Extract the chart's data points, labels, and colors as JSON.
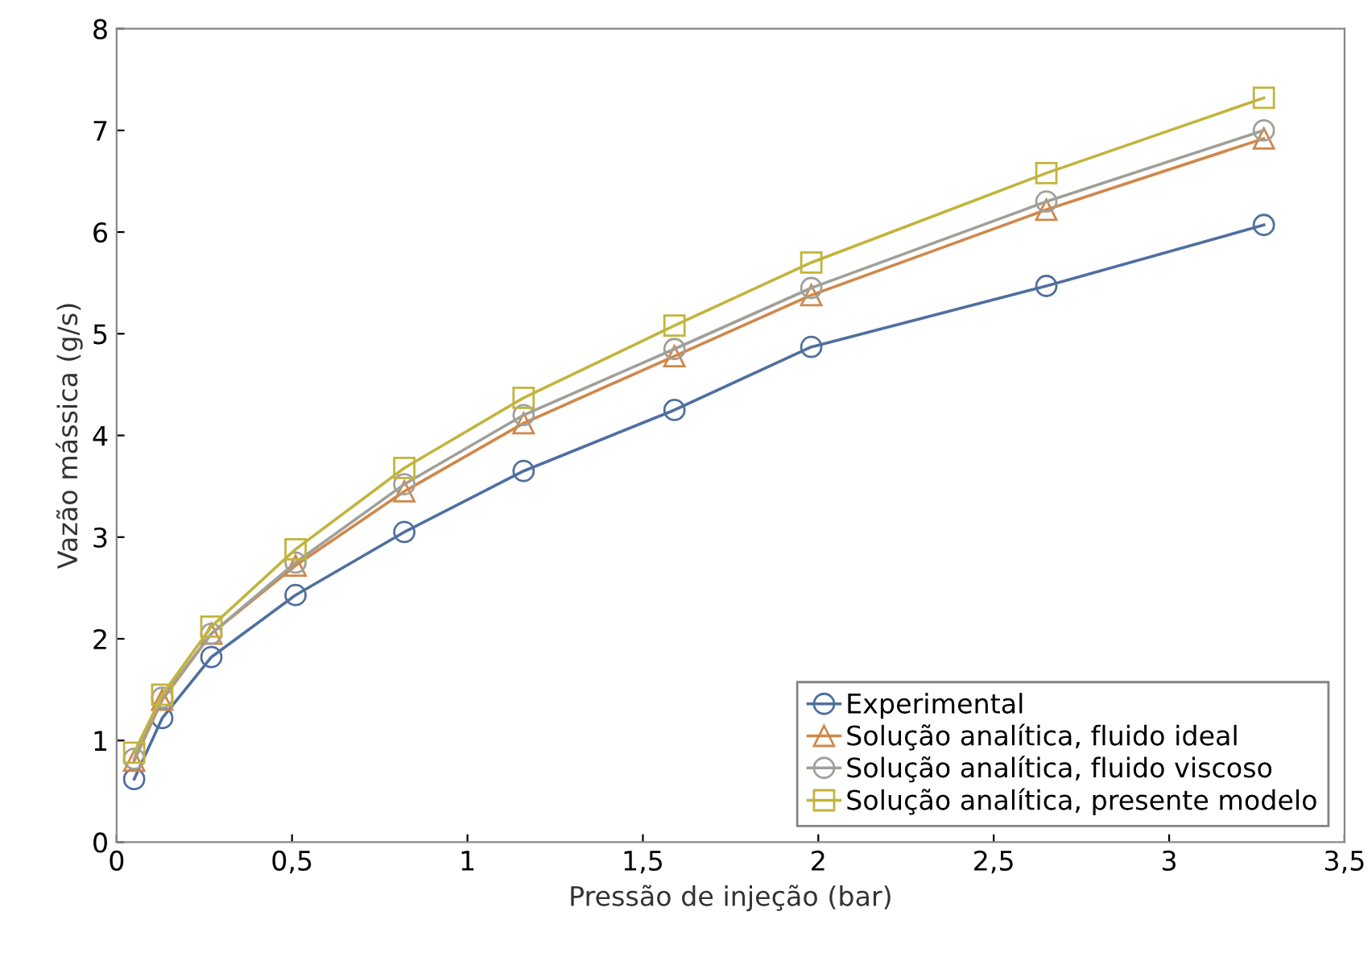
{
  "chart_data": {
    "type": "line",
    "xlabel": "Pressão de injeção (bar)",
    "ylabel": "Vazão mássica (g/s)",
    "x": [
      0.05,
      0.13,
      0.27,
      0.51,
      0.82,
      1.16,
      1.59,
      1.98,
      2.65,
      3.27
    ],
    "series": [
      {
        "name": "Experimental",
        "color": "#4f6f9f",
        "marker": "circle",
        "values": [
          0.62,
          1.22,
          1.82,
          2.43,
          3.05,
          3.65,
          4.25,
          4.87,
          5.47,
          6.07
        ]
      },
      {
        "name": "Solução analítica, fluido ideal",
        "color": "#d0874a",
        "marker": "triangle",
        "values": [
          0.8,
          1.4,
          2.05,
          2.72,
          3.45,
          4.12,
          4.78,
          5.38,
          6.22,
          6.92
        ]
      },
      {
        "name": "Solução analítica, fluido viscoso",
        "color": "#a0a09a",
        "marker": "circle",
        "values": [
          0.82,
          1.42,
          2.05,
          2.75,
          3.52,
          4.2,
          4.85,
          5.45,
          6.3,
          7.0
        ]
      },
      {
        "name": "Solução analítica, presente modelo",
        "color": "#c2b43c",
        "marker": "square",
        "values": [
          0.88,
          1.45,
          2.12,
          2.88,
          3.68,
          4.37,
          5.08,
          5.7,
          6.58,
          7.32
        ]
      }
    ],
    "xlim": [
      0,
      3.5
    ],
    "ylim": [
      0,
      8
    ],
    "xticks": [
      0,
      {
        "value": 0.5,
        "label": "0,5"
      },
      1,
      {
        "value": 1.5,
        "label": "1,5"
      },
      2,
      {
        "value": 2.5,
        "label": "2,5"
      },
      3,
      {
        "value": 3.5,
        "label": "3,5"
      }
    ],
    "yticks": [
      0,
      1,
      2,
      3,
      4,
      5,
      6,
      7,
      8
    ],
    "grid": false,
    "legend": "bottom right",
    "line_style": "solid"
  }
}
